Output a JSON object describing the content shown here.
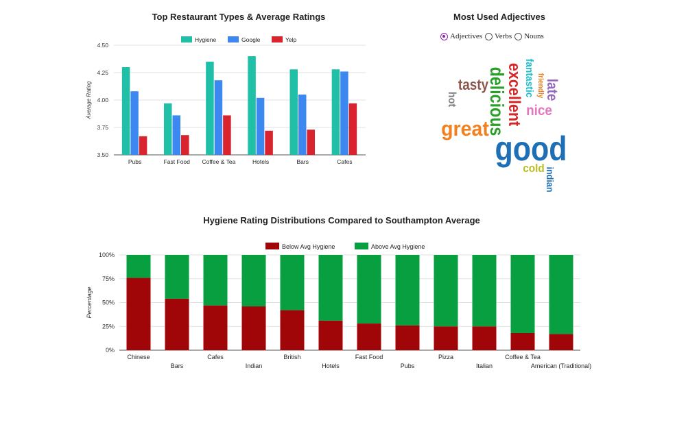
{
  "chart_data": [
    {
      "type": "bar",
      "title": "Top Restaurant Types & Average Ratings",
      "xlabel": "",
      "ylabel": "Average Rating",
      "ylim": [
        3.5,
        4.5
      ],
      "yticks": [
        "3.50",
        "3.75",
        "4.00",
        "4.25",
        "4.50"
      ],
      "legend": "top",
      "grid": true,
      "categories": [
        "Pubs",
        "Fast Food",
        "Coffee & Tea",
        "Hotels",
        "Bars",
        "Cafes"
      ],
      "series": [
        {
          "name": "Hygiene",
          "color": "#20bfa8",
          "values": [
            4.3,
            3.97,
            4.35,
            4.4,
            4.28,
            4.28
          ]
        },
        {
          "name": "Google",
          "color": "#3d88f0",
          "values": [
            4.08,
            3.86,
            4.18,
            4.02,
            4.05,
            4.26
          ]
        },
        {
          "name": "Yelp",
          "color": "#d9232e",
          "values": [
            3.67,
            3.68,
            3.86,
            3.72,
            3.73,
            3.97
          ]
        }
      ]
    },
    {
      "type": "bar",
      "stacked": true,
      "title": "Hygiene Rating Distributions Compared to Southampton Average",
      "xlabel": "",
      "ylabel": "Percentage",
      "ylim": [
        0,
        100
      ],
      "yticks": [
        "0%",
        "25%",
        "50%",
        "75%",
        "100%"
      ],
      "legend": "top",
      "grid": true,
      "categories": [
        "Chinese",
        "Bars",
        "Cafes",
        "Indian",
        "British",
        "Hotels",
        "Fast Food",
        "Pubs",
        "Pizza",
        "Italian",
        "Coffee & Tea",
        "American (Traditional)"
      ],
      "series": [
        {
          "name": "Below Avg Hygiene",
          "color": "#a00607",
          "values": [
            76,
            54,
            47,
            46,
            42,
            31,
            28,
            26,
            25,
            25,
            18,
            17
          ]
        },
        {
          "name": "Above Avg Hygiene",
          "color": "#089f41",
          "values": [
            24,
            46,
            53,
            54,
            58,
            69,
            72,
            74,
            75,
            75,
            82,
            83
          ]
        }
      ]
    }
  ],
  "wordcloud": {
    "title": "Most Used Adjectives",
    "options": [
      {
        "label": "Adjectives",
        "checked": true
      },
      {
        "label": "Verbs",
        "checked": false
      },
      {
        "label": "Nouns",
        "checked": false
      }
    ],
    "words": [
      {
        "text": "good",
        "color": "#1f6fb4"
      },
      {
        "text": "great",
        "color": "#f2801e"
      },
      {
        "text": "delicious",
        "color": "#2aa02b"
      },
      {
        "text": "excellent",
        "color": "#d62728"
      },
      {
        "text": "tasty",
        "color": "#8c564b"
      },
      {
        "text": "fantastic",
        "color": "#17becf"
      },
      {
        "text": "nice",
        "color": "#e377c2"
      },
      {
        "text": "late",
        "color": "#9467bd"
      },
      {
        "text": "friendly",
        "color": "#f2801e"
      },
      {
        "text": "hot",
        "color": "#7f7f7f"
      },
      {
        "text": "cold",
        "color": "#bcbd22"
      },
      {
        "text": "indian",
        "color": "#1f6fb4"
      }
    ]
  }
}
